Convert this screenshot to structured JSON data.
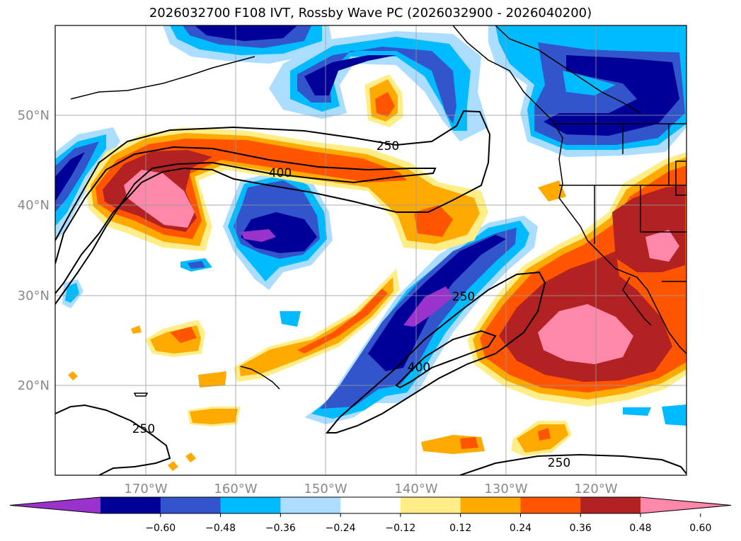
{
  "title": "2026032700 F108 IVT, Rossby Wave PC (2026032900 - 2026040200)",
  "map": {
    "lon_range": [
      -180,
      -110
    ],
    "lat_range": [
      10,
      60
    ],
    "lon_ticks": [
      {
        "value": -170,
        "label": "170°W"
      },
      {
        "value": -160,
        "label": "160°W"
      },
      {
        "value": -150,
        "label": "150°W"
      },
      {
        "value": -140,
        "label": "140°W"
      },
      {
        "value": -130,
        "label": "130°W"
      },
      {
        "value": -120,
        "label": "120°W"
      }
    ],
    "lat_ticks": [
      {
        "value": 20,
        "label": "20°N"
      },
      {
        "value": 30,
        "label": "30°N"
      },
      {
        "value": 40,
        "label": "40°N"
      },
      {
        "value": 50,
        "label": "50°N"
      }
    ],
    "grid": true,
    "contour_labels": [
      {
        "text": "250",
        "lon": -145.3,
        "lat": 46.8
      },
      {
        "text": "400",
        "lon": -155.3,
        "lat": 43.5
      },
      {
        "text": "250",
        "lon": -134.5,
        "lat": 30.0
      },
      {
        "text": "400",
        "lon": -140.3,
        "lat": 22.0
      },
      {
        "text": "250",
        "lon": -171.0,
        "lat": 15.0
      },
      {
        "text": "250",
        "lon": -125.8,
        "lat": 11.4
      }
    ]
  },
  "colorbar": {
    "colors": [
      "#9933cc",
      "#000099",
      "#3355cc",
      "#00bbff",
      "#aaddff",
      "#ffffff",
      "#ffee88",
      "#ffaa00",
      "#ff5500",
      "#b22222",
      "#ff88aa"
    ],
    "tick_labels": [
      "−0.60",
      "−0.48",
      "−0.36",
      "−0.24",
      "−0.12",
      "0.12",
      "0.24",
      "0.36",
      "0.48",
      "0.60"
    ]
  }
}
